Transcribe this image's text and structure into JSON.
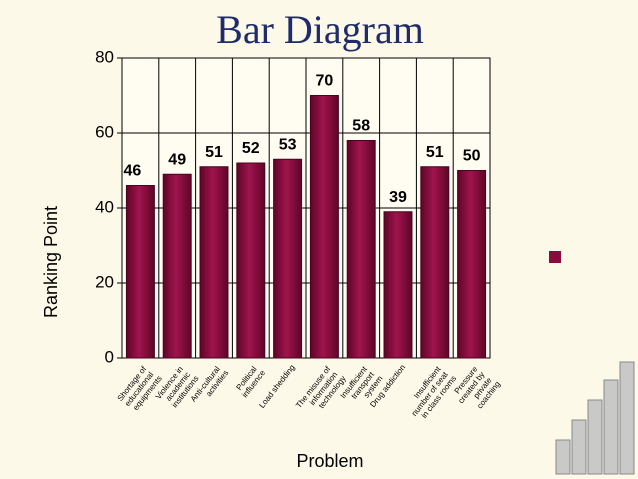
{
  "chart_data": {
    "type": "bar",
    "title": "Bar Diagram",
    "y_label": "Ranking Point",
    "x_label": "Problem",
    "categories": [
      "Shortage of educational equipments",
      "Violence in academic institutions",
      "Anti-cultural activities",
      "Political influence",
      "Load shedding",
      "The misuse of information technology",
      "Insufficient transport system",
      "Drug addiction",
      "Insufficient number of seat in class rooms",
      "Pressure created by private coaching"
    ],
    "values": [
      46,
      49,
      51,
      52,
      53,
      70,
      58,
      39,
      51,
      50
    ],
    "color": "#8a0b3e",
    "ylim": [
      0,
      80
    ],
    "yticks": [
      0,
      20,
      40,
      60,
      80
    ],
    "grid": true,
    "legend": "right"
  }
}
